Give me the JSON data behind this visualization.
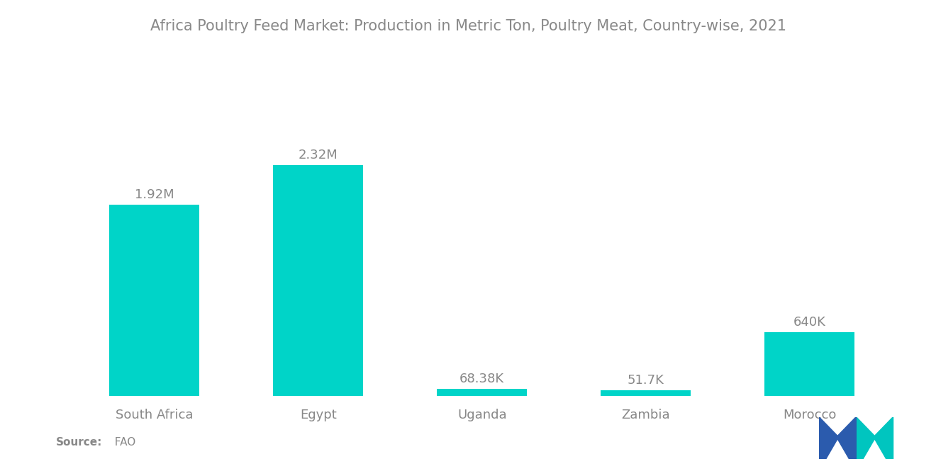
{
  "title": "Africa Poultry Feed Market: Production in Metric Ton, Poultry Meat, Country-wise, 2021",
  "categories": [
    "South Africa",
    "Egypt",
    "Uganda",
    "Zambia",
    "Morocco"
  ],
  "values": [
    1920000,
    2320000,
    68380,
    51700,
    640000
  ],
  "labels": [
    "1.92M",
    "2.32M",
    "68.38K",
    "51.7K",
    "640K"
  ],
  "bar_color": "#00D4C8",
  "background_color": "#ffffff",
  "source_label_bold": "Source:",
  "source_label_normal": "  FAO",
  "title_color": "#888888",
  "label_color": "#888888",
  "tick_color": "#888888",
  "logo_left_color": "#2B5BAD",
  "logo_right_color": "#00C5BF"
}
